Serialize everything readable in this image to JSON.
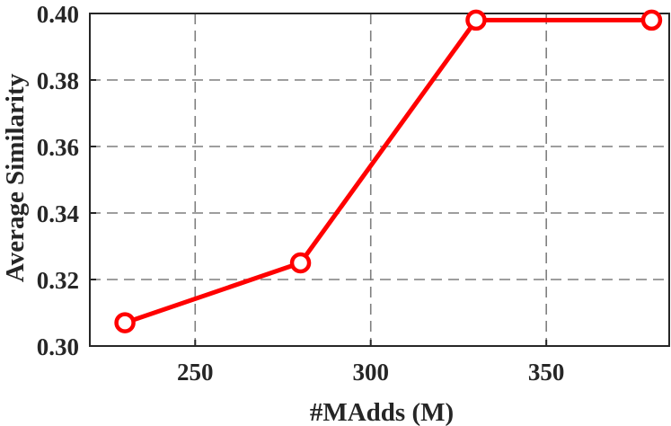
{
  "chart_data": {
    "type": "line",
    "title": "",
    "xlabel": "#MAdds (M)",
    "ylabel": "Average Similarity",
    "xlim": [
      220,
      385
    ],
    "ylim": [
      0.3,
      0.4
    ],
    "xticks": [
      250,
      300,
      350
    ],
    "yticks": [
      0.3,
      0.32,
      0.34,
      0.36,
      0.38,
      0.4
    ],
    "xtick_labels": [
      "250",
      "300",
      "350"
    ],
    "ytick_labels": [
      "0.30",
      "0.32",
      "0.34",
      "0.36",
      "0.38",
      "0.40"
    ],
    "grid": true,
    "grid_style": "dashed",
    "series": [
      {
        "x": [
          230,
          280,
          330,
          380
        ],
        "values": [
          0.307,
          0.325,
          0.398,
          0.398
        ],
        "color": "#ff0000",
        "marker": "circle"
      }
    ]
  }
}
